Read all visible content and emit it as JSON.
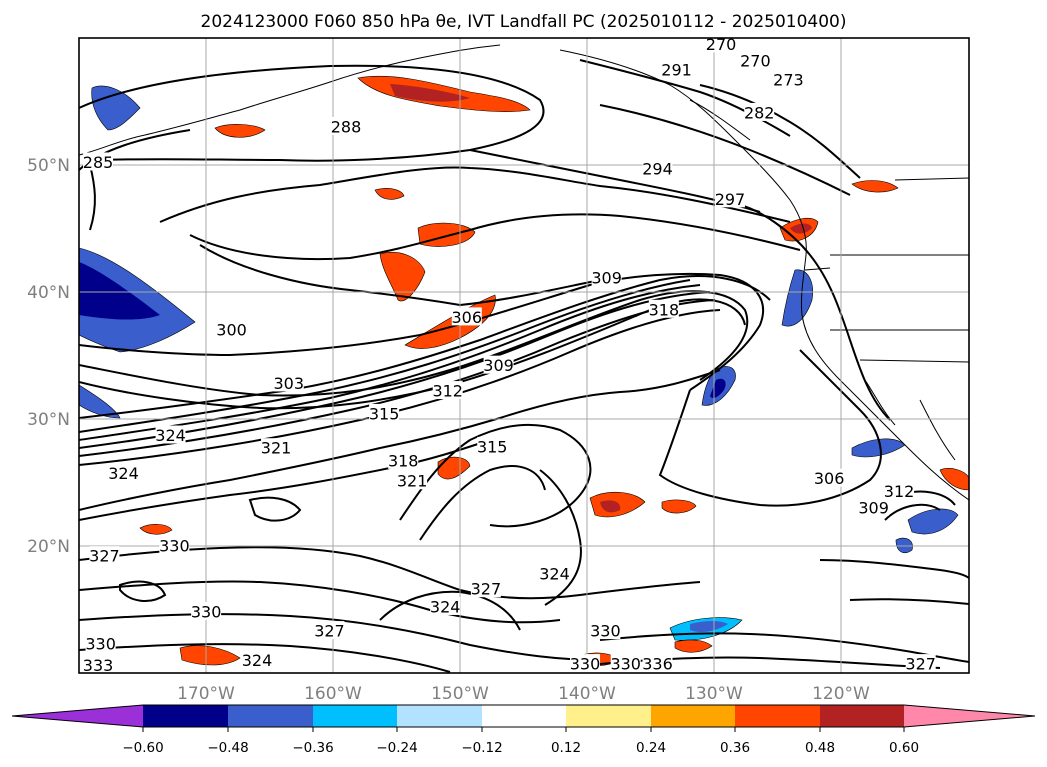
{
  "title": "2024123000 F060 850 hPa θe, IVT Landfall PC (2025010112 - 2025010400)",
  "map": {
    "lon_ticks": [
      "170°W",
      "160°W",
      "150°W",
      "140°W",
      "130°W",
      "120°W"
    ],
    "lat_ticks": [
      "50°N",
      "40°N",
      "30°N",
      "20°N"
    ],
    "gridlines": true
  },
  "colorbar": {
    "ticks": [
      "−0.60",
      "−0.48",
      "−0.36",
      "−0.24",
      "−0.12",
      "0.12",
      "0.24",
      "0.36",
      "0.48",
      "0.60"
    ],
    "extend": "both",
    "colors": [
      "#9b30d9",
      "#00008b",
      "#3a5fcd",
      "#00bfff",
      "#b2e2ff",
      "#ffffff",
      "#fff08c",
      "#ffa500",
      "#ff4500",
      "#b22222",
      "#ff88aa"
    ]
  },
  "contour_labels": [
    {
      "text": "270",
      "lon": -129.5,
      "lat": 57.0
    },
    {
      "text": "270",
      "lon": -126.8,
      "lat": 55.7
    },
    {
      "text": "273",
      "lon": -124.2,
      "lat": 54.2
    },
    {
      "text": "291",
      "lon": -133.0,
      "lat": 55.0
    },
    {
      "text": "282",
      "lon": -126.5,
      "lat": 51.6
    },
    {
      "text": "288",
      "lon": -159.0,
      "lat": 50.5
    },
    {
      "text": "285",
      "lon": -178.5,
      "lat": 47.7
    },
    {
      "text": "294",
      "lon": -134.5,
      "lat": 47.2
    },
    {
      "text": "297",
      "lon": -128.8,
      "lat": 44.8
    },
    {
      "text": "309",
      "lon": -138.5,
      "lat": 38.6
    },
    {
      "text": "318",
      "lon": -134.0,
      "lat": 36.1
    },
    {
      "text": "306",
      "lon": -149.5,
      "lat": 35.5
    },
    {
      "text": "300",
      "lon": -168.0,
      "lat": 34.5
    },
    {
      "text": "309",
      "lon": -147.0,
      "lat": 31.7
    },
    {
      "text": "303",
      "lon": -163.5,
      "lat": 30.3
    },
    {
      "text": "312",
      "lon": -151.0,
      "lat": 29.7
    },
    {
      "text": "315",
      "lon": -156.0,
      "lat": 27.9
    },
    {
      "text": "324",
      "lon": -172.8,
      "lat": 26.2
    },
    {
      "text": "321",
      "lon": -164.5,
      "lat": 25.2
    },
    {
      "text": "318",
      "lon": -154.5,
      "lat": 24.2
    },
    {
      "text": "315",
      "lon": -147.5,
      "lat": 25.3
    },
    {
      "text": "321",
      "lon": -153.8,
      "lat": 22.6
    },
    {
      "text": "324",
      "lon": -176.5,
      "lat": 23.2
    },
    {
      "text": "306",
      "lon": -121.0,
      "lat": 22.8
    },
    {
      "text": "312",
      "lon": -115.5,
      "lat": 21.8
    },
    {
      "text": "309",
      "lon": -117.5,
      "lat": 20.5
    },
    {
      "text": "330",
      "lon": -172.5,
      "lat": 17.5
    },
    {
      "text": "327",
      "lon": -178.0,
      "lat": 16.7
    },
    {
      "text": "324",
      "lon": -142.6,
      "lat": 15.3
    },
    {
      "text": "327",
      "lon": -148.0,
      "lat": 14.1
    },
    {
      "text": "324",
      "lon": -151.2,
      "lat": 12.7
    },
    {
      "text": "330",
      "lon": -170.0,
      "lat": 12.3
    },
    {
      "text": "327",
      "lon": -160.3,
      "lat": 10.8
    },
    {
      "text": "330",
      "lon": -138.6,
      "lat": 10.8
    },
    {
      "text": "330",
      "lon": -178.3,
      "lat": 9.8
    },
    {
      "text": "324",
      "lon": -166.0,
      "lat": 8.5
    },
    {
      "text": "330",
      "lon": -140.2,
      "lat": 8.2
    },
    {
      "text": "330",
      "lon": -137.0,
      "lat": 8.2
    },
    {
      "text": "336",
      "lon": -134.5,
      "lat": 8.2
    },
    {
      "text": "327",
      "lon": -113.8,
      "lat": 8.2
    },
    {
      "text": "333",
      "lon": -178.5,
      "lat": 8.1
    }
  ],
  "legend_colors": {
    "contour": "#000000",
    "gridline": "#a8a8a8",
    "tick_label": "#7f7f7f"
  }
}
